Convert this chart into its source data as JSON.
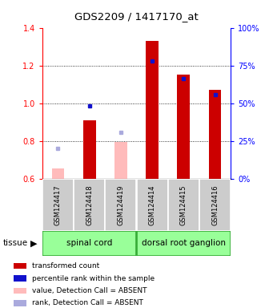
{
  "title": "GDS2209 / 1417170_at",
  "samples": [
    "GSM124417",
    "GSM124418",
    "GSM124419",
    "GSM124414",
    "GSM124415",
    "GSM124416"
  ],
  "group_labels": [
    "spinal cord",
    "dorsal root ganglion"
  ],
  "red_values": [
    null,
    0.91,
    null,
    1.33,
    1.15,
    1.07
  ],
  "blue_values": [
    null,
    0.985,
    null,
    1.225,
    1.13,
    1.045
  ],
  "pink_values": [
    0.655,
    null,
    0.795,
    null,
    null,
    null
  ],
  "lightblue_values": [
    0.76,
    null,
    0.845,
    null,
    null,
    null
  ],
  "ylim": [
    0.6,
    1.4
  ],
  "yticks_left": [
    0.6,
    0.8,
    1.0,
    1.2,
    1.4
  ],
  "yticks_right": [
    0,
    25,
    50,
    75,
    100
  ],
  "bar_width": 0.4,
  "red_color": "#cc0000",
  "blue_color": "#1111cc",
  "pink_color": "#ffbbbb",
  "lightblue_color": "#aaaadd",
  "group_bg_color": "#99ff99",
  "group_border_color": "#33aa33",
  "sample_bg_color": "#cccccc",
  "sample_border_color": "#999999",
  "tissue_label": "tissue",
  "legend_items": [
    {
      "color": "#cc0000",
      "label": "transformed count"
    },
    {
      "color": "#1111cc",
      "label": "percentile rank within the sample"
    },
    {
      "color": "#ffbbbb",
      "label": "value, Detection Call = ABSENT"
    },
    {
      "color": "#aaaadd",
      "label": "rank, Detection Call = ABSENT"
    }
  ]
}
